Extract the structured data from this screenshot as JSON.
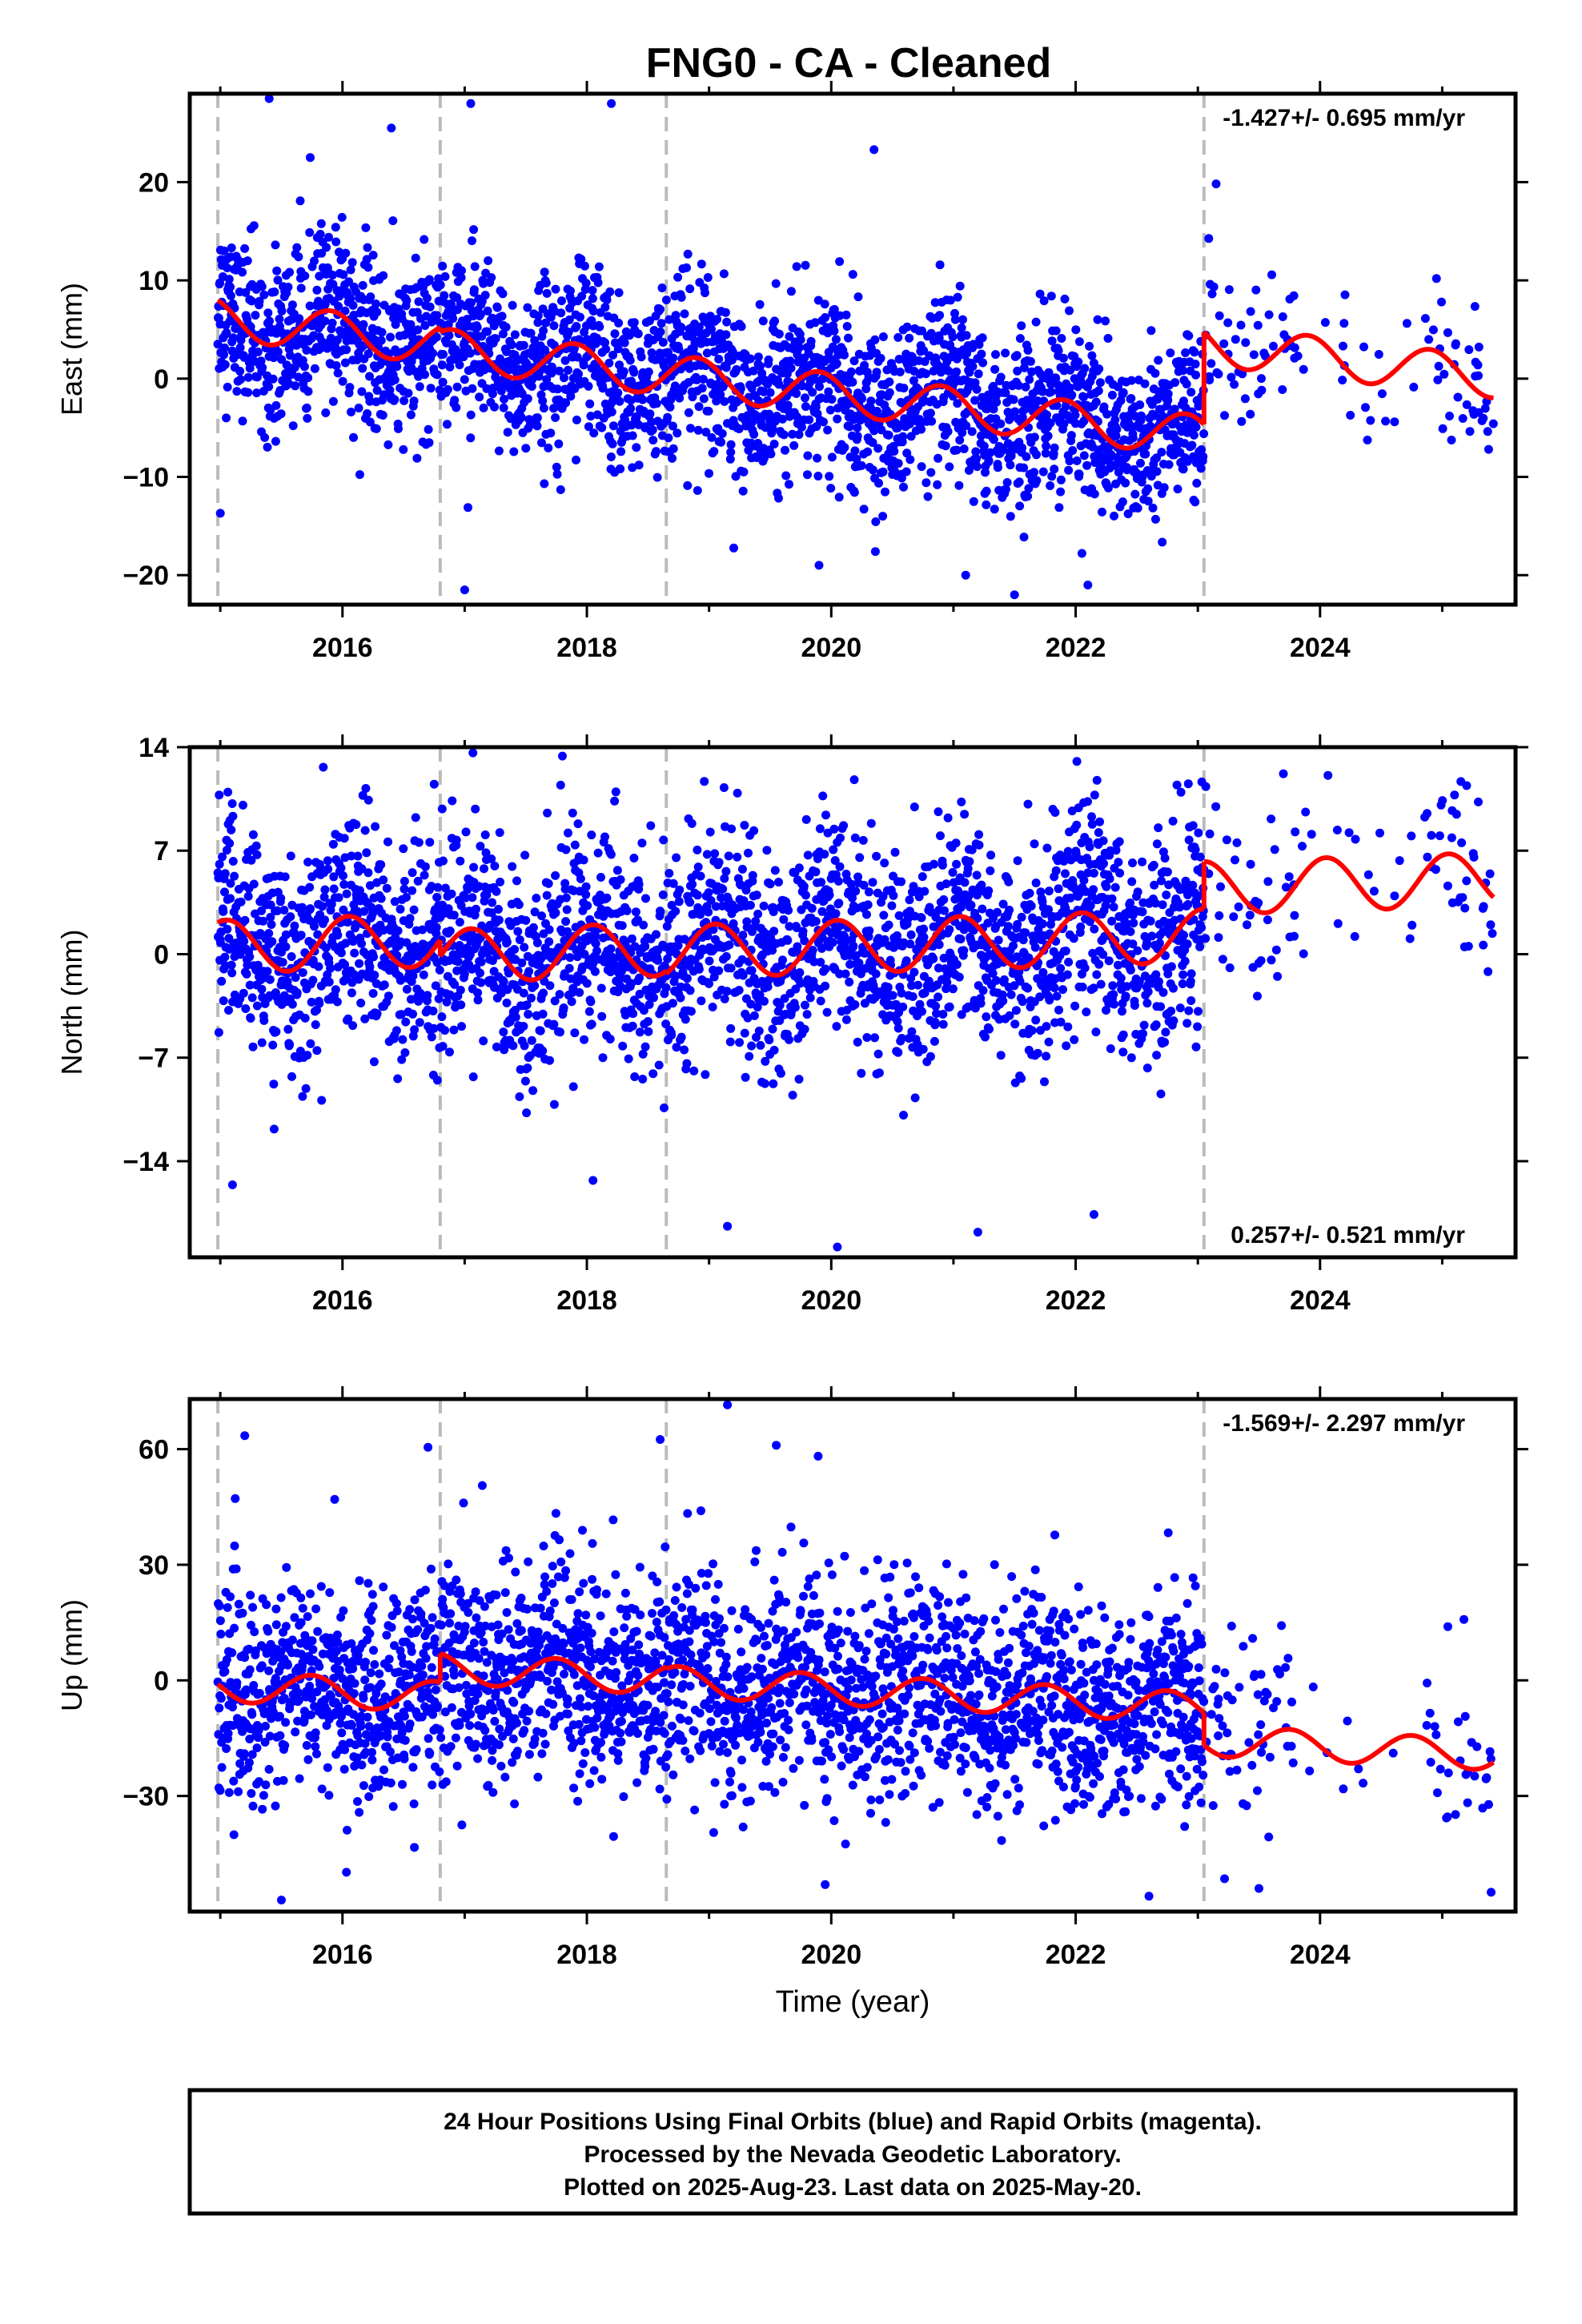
{
  "title": "FNG0  - CA - Cleaned",
  "colors": {
    "points": "#0000ff",
    "model": "#ff0000",
    "breaks": "#bbbbbb",
    "frame": "#000000"
  },
  "chart_data": [
    {
      "type": "scatter",
      "name": "east",
      "ylabel": "East (mm)",
      "xlabel": "",
      "rate_label": "-1.427+/- 0.695 mm/yr",
      "rate_position": "top-right",
      "xlim": [
        2014.75,
        2025.6
      ],
      "ylim": [
        -23,
        29
      ],
      "xticks": [
        "2016",
        "2018",
        "2020",
        "2022",
        "2024"
      ],
      "yticks": [
        "20",
        "10",
        "0",
        "−10",
        "−20"
      ],
      "ytick_values": [
        20,
        10,
        0,
        -10,
        -20
      ],
      "model": {
        "segments": [
          {
            "x0": 2014.98,
            "x1": 2016.8,
            "offset": 6.1
          },
          {
            "x0": 2016.8,
            "x1": 2023.05,
            "offset": 5.6
          },
          {
            "x0": 2023.05,
            "x1": 2025.42,
            "offset": 15.0
          }
        ],
        "trend": -1.427,
        "amplitude": 2.1,
        "phase": 0.35
      },
      "scatter_sd": 4.3,
      "outliers": [
        [
          2015.4,
          28.5
        ],
        [
          2017.05,
          28
        ],
        [
          2018.2,
          28
        ],
        [
          2020.35,
          23.3
        ],
        [
          2016.4,
          25.5
        ],
        [
          2015.0,
          -13.7
        ],
        [
          2017.0,
          -21.5
        ],
        [
          2021.5,
          -22
        ],
        [
          2021.1,
          -20
        ],
        [
          2019.9,
          -19
        ],
        [
          2022.1,
          -21
        ]
      ]
    },
    {
      "type": "scatter",
      "name": "north",
      "ylabel": "North (mm)",
      "xlabel": "",
      "rate_label": "0.257+/- 0.521 mm/yr",
      "rate_position": "bottom-right",
      "xlim": [
        2014.75,
        2025.6
      ],
      "ylim": [
        -20.5,
        14
      ],
      "xticks": [
        "2016",
        "2018",
        "2020",
        "2022",
        "2024"
      ],
      "yticks": [
        "14",
        "7",
        "0",
        "−7",
        "−14"
      ],
      "ytick_values": [
        14,
        7,
        0,
        -7,
        -14
      ],
      "model": {
        "segments": [
          {
            "x0": 2014.98,
            "x1": 2016.8,
            "offset": 0.5
          },
          {
            "x0": 2016.8,
            "x1": 2018.65,
            "offset": -0.6
          },
          {
            "x0": 2018.65,
            "x1": 2023.05,
            "offset": -0.8
          },
          {
            "x0": 2023.05,
            "x1": 2025.42,
            "offset": 2.4
          }
        ],
        "trend": 0.257,
        "amplitude": 1.8,
        "phase": 0.2
      },
      "scatter_sd": 3.6,
      "outliers": [
        [
          2017.8,
          13.4
        ],
        [
          2016.75,
          11.5
        ],
        [
          2023.7,
          12.2
        ],
        [
          2025.2,
          11.4
        ],
        [
          2020.05,
          -19.8
        ],
        [
          2019.15,
          -18.4
        ],
        [
          2021.2,
          -18.8
        ],
        [
          2015.1,
          -15.6
        ],
        [
          2018.05,
          -15.3
        ],
        [
          2022.15,
          -17.6
        ]
      ]
    },
    {
      "type": "scatter",
      "name": "up",
      "ylabel": "Up (mm)",
      "xlabel": "Time (year)",
      "rate_label": "-1.569+/- 2.297 mm/yr",
      "rate_position": "top-right",
      "xlim": [
        2014.75,
        2025.6
      ],
      "ylim": [
        -60,
        73
      ],
      "xticks": [
        "2016",
        "2018",
        "2020",
        "2022",
        "2024"
      ],
      "yticks": [
        "60",
        "30",
        "0",
        "−30"
      ],
      "ytick_values": [
        60,
        30,
        0,
        -30
      ],
      "model": {
        "segments": [
          {
            "x0": 2014.98,
            "x1": 2016.8,
            "offset": -1.5
          },
          {
            "x0": 2016.8,
            "x1": 2018.65,
            "offset": 6.0
          },
          {
            "x0": 2018.65,
            "x1": 2023.05,
            "offset": 5.5
          },
          {
            "x0": 2023.05,
            "x1": 2025.42,
            "offset": -3.0
          }
        ],
        "trend": -1.569,
        "amplitude": 4.0,
        "phase": 0.5
      },
      "scatter_sd": 13.5,
      "outliers": [
        [
          2019.15,
          71.5
        ],
        [
          2015.2,
          63.5
        ],
        [
          2018.6,
          62.5
        ],
        [
          2019.55,
          61
        ],
        [
          2016.7,
          60.5
        ],
        [
          2015.5,
          -57
        ],
        [
          2022.6,
          -56
        ],
        [
          2023.5,
          -54
        ],
        [
          2025.4,
          -55
        ],
        [
          2019.95,
          -53
        ]
      ]
    }
  ],
  "breaks": [
    2014.98,
    2016.8,
    2018.65,
    2023.05
  ],
  "gap": [
    2023.8,
    2024.85
  ],
  "footer": {
    "line1": "24 Hour Positions Using Final Orbits (blue) and Rapid Orbits (magenta).",
    "line2": "Processed by the Nevada Geodetic Laboratory.",
    "line3": "Plotted on 2025-Aug-23. Last data on 2025-May-20."
  }
}
